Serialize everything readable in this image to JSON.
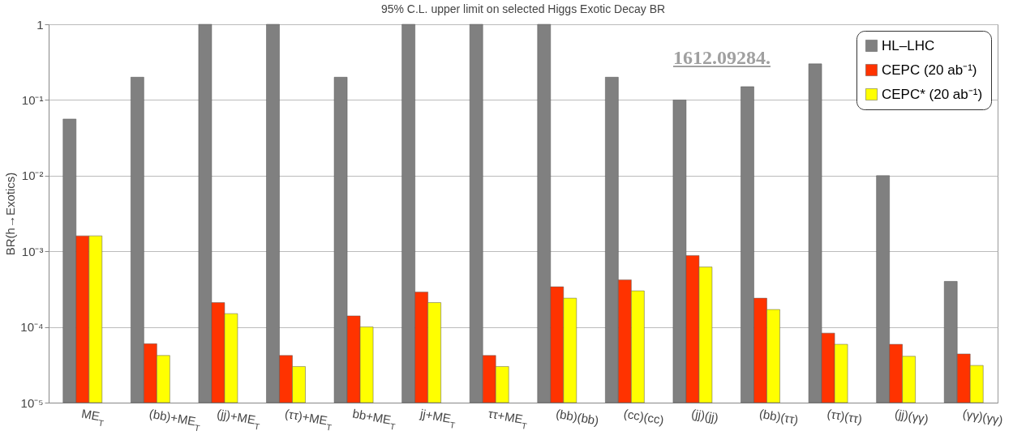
{
  "chart_data": {
    "type": "bar",
    "title": "95% C.L. upper limit on selected Higgs Exotic Decay BR",
    "ylabel": "BR(h→Exotics)",
    "categories": [
      "ME$_{T}$",
      "(bb)+ME$_{T}$",
      "(jj)+ME$_{T}$",
      "(ττ)+ME$_{T}$",
      "bb+ME$_{T}$",
      "jj+ME$_{T}$",
      "ττ+ME$_{T}$",
      "(bb)(bb)",
      "(cc)(cc)",
      "(jj)(jj)",
      "(bb)(ττ)",
      "(ττ)(ττ)",
      "(jj)(γγ)",
      "(γγ)(γγ)"
    ],
    "series": [
      {
        "name": "HL–LHC",
        "color": "#808080",
        "values": [
          0.056,
          0.2,
          1,
          1,
          0.2,
          1,
          1,
          1,
          0.2,
          0.1,
          0.15,
          0.3,
          0.01,
          0.0004
        ]
      },
      {
        "name": "CEPC (20 ab⁻¹)",
        "color": "#ff3300",
        "values": [
          0.0016,
          6e-05,
          0.00021,
          4.2e-05,
          0.00014,
          0.00029,
          4.2e-05,
          0.00034,
          0.00042,
          0.00088,
          0.00024,
          8.3e-05,
          5.9e-05,
          4.4e-05
        ]
      },
      {
        "name": "CEPC* (20 ab⁻¹)",
        "color": "#ffff00",
        "values": [
          0.0016,
          4.2e-05,
          0.00015,
          3e-05,
          0.0001,
          0.00021,
          3e-05,
          0.00024,
          0.0003,
          0.00062,
          0.00017,
          5.9e-05,
          4.1e-05,
          3.1e-05
        ]
      }
    ],
    "log": true,
    "ylim": [
      1e-05,
      1
    ],
    "yticks": [
      {
        "value": 1e-05,
        "label": "10⁻⁵"
      },
      {
        "value": 0.0001,
        "label": "10⁻⁴"
      },
      {
        "value": 0.001,
        "label": "10⁻³"
      },
      {
        "value": 0.01,
        "label": "10⁻²"
      },
      {
        "value": 0.1,
        "label": "10⁻¹"
      },
      1
    ],
    "grid": "y",
    "legend": "top right",
    "annotations": [
      "1612.09284."
    ]
  }
}
